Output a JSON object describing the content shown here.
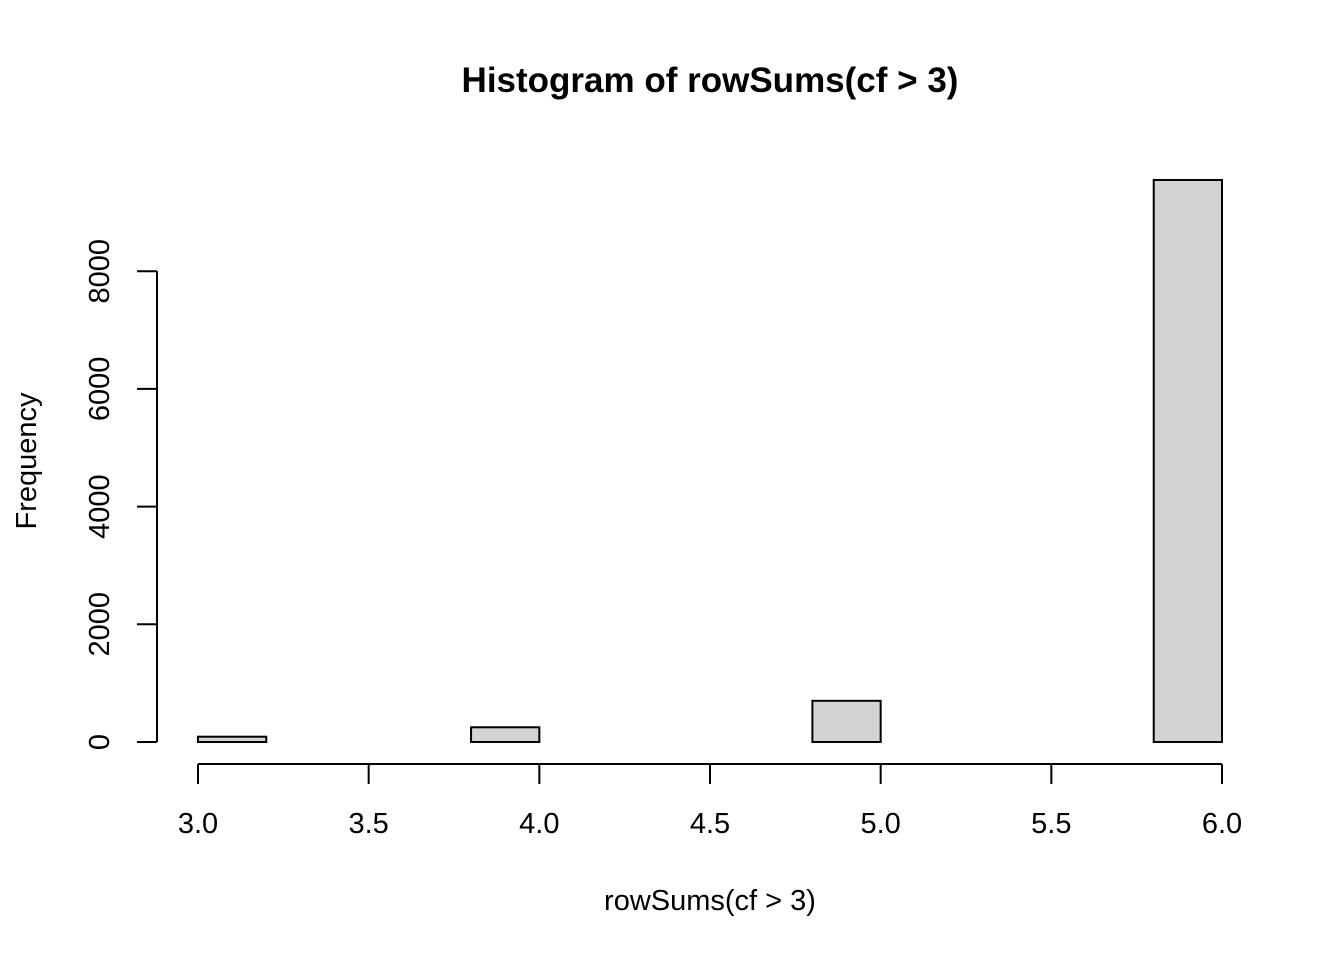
{
  "chart_data": {
    "type": "bar",
    "title": "Histogram of rowSums(cf > 3)",
    "xlabel": "rowSums(cf > 3)",
    "ylabel": "Frequency",
    "bins": [
      {
        "start": 3.0,
        "end": 3.2,
        "count": 90
      },
      {
        "start": 3.2,
        "end": 3.4,
        "count": 0
      },
      {
        "start": 3.4,
        "end": 3.6,
        "count": 0
      },
      {
        "start": 3.6,
        "end": 3.8,
        "count": 0
      },
      {
        "start": 3.8,
        "end": 4.0,
        "count": 250
      },
      {
        "start": 4.0,
        "end": 4.2,
        "count": 0
      },
      {
        "start": 4.2,
        "end": 4.4,
        "count": 0
      },
      {
        "start": 4.4,
        "end": 4.6,
        "count": 0
      },
      {
        "start": 4.6,
        "end": 4.8,
        "count": 0
      },
      {
        "start": 4.8,
        "end": 5.0,
        "count": 700
      },
      {
        "start": 5.0,
        "end": 5.2,
        "count": 0
      },
      {
        "start": 5.2,
        "end": 5.4,
        "count": 0
      },
      {
        "start": 5.4,
        "end": 5.6,
        "count": 0
      },
      {
        "start": 5.6,
        "end": 5.8,
        "count": 0
      },
      {
        "start": 5.8,
        "end": 6.0,
        "count": 9550
      }
    ],
    "xlim": [
      3.0,
      6.0
    ],
    "ylim": [
      0,
      9550
    ],
    "x_ticks": [
      3.0,
      3.5,
      4.0,
      4.5,
      5.0,
      5.5,
      6.0
    ],
    "x_tick_labels": [
      "3.0",
      "3.5",
      "4.0",
      "4.5",
      "5.0",
      "5.5",
      "6.0"
    ],
    "y_ticks": [
      0,
      2000,
      4000,
      6000,
      8000
    ],
    "y_tick_labels": [
      "0",
      "2000",
      "4000",
      "6000",
      "8000"
    ],
    "bar_color": "#d3d3d3",
    "grid": false,
    "legend": "none"
  }
}
